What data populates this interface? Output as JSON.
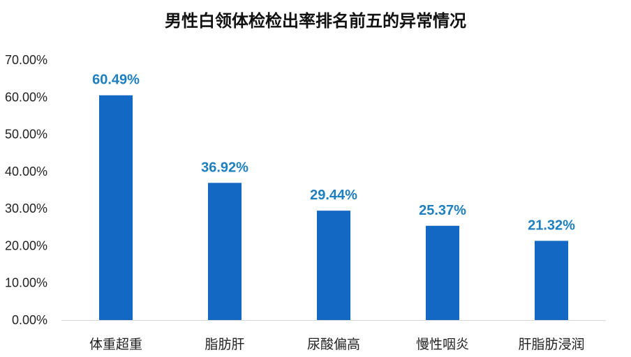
{
  "chart_data": {
    "type": "bar",
    "title": "男性白领体检检出率排名前五的异常情况",
    "categories": [
      "体重超重",
      "脂肪肝",
      "尿酸偏高",
      "慢性咽炎",
      "肝脂肪浸润"
    ],
    "values": [
      60.49,
      36.92,
      29.44,
      25.37,
      21.32
    ],
    "data_labels": [
      "60.49%",
      "36.92%",
      "29.44%",
      "25.37%",
      "21.32%"
    ],
    "y_ticks": [
      "0.00%",
      "10.00%",
      "20.00%",
      "30.00%",
      "40.00%",
      "50.00%",
      "60.00%",
      "70.00%"
    ],
    "ylim": [
      0,
      70
    ],
    "xlabel": "",
    "ylabel": "",
    "grid": false,
    "legend": "none",
    "colors": {
      "bar": "#1368C4",
      "data_label": "#1E7FC0",
      "axis": "#D9D9D9"
    }
  }
}
